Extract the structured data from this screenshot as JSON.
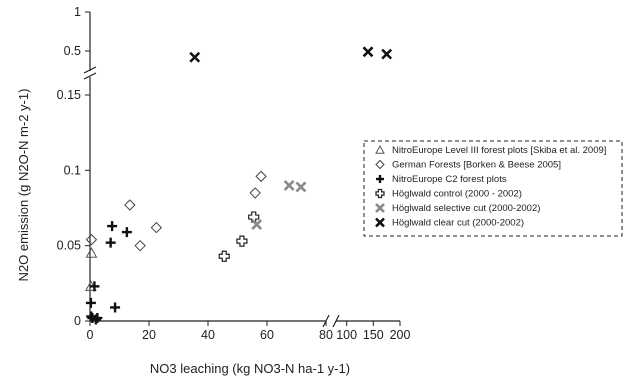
{
  "chart_data": {
    "type": "scatter",
    "xlabel": "NO3 leaching (kg NO3-N ha-1 y-1)",
    "ylabel": "N2O emission (g N2O-N m-2 y-1)",
    "x_axis": {
      "segments": [
        {
          "range": [
            0,
            80
          ],
          "ticks": [
            0,
            20,
            40,
            60,
            80
          ]
        },
        {
          "range": [
            80,
            200
          ],
          "ticks": [
            100,
            150,
            200
          ],
          "break_before": true
        }
      ],
      "tick_labels": [
        "0",
        "20",
        "40",
        "60",
        "80",
        "100",
        "150",
        "200"
      ]
    },
    "y_axis": {
      "segments": [
        {
          "range": [
            0,
            0.17
          ],
          "ticks": [
            0,
            0.05,
            0.1,
            0.15
          ]
        },
        {
          "range": [
            0.3,
            1.0
          ],
          "ticks": [
            0.5,
            1.0
          ],
          "break_before": true
        }
      ],
      "tick_labels": [
        "0",
        "0.05",
        "0.1",
        "0.15",
        "0.5",
        "1"
      ]
    },
    "grid": false,
    "legend_position": "right",
    "series": [
      {
        "name": "NitroEurope Level III forest plots [Skiba et al. 2009]",
        "marker": "triangle",
        "color": "#555555",
        "points": [
          [
            0.5,
            0.045
          ],
          [
            0.3,
            0.023
          ]
        ]
      },
      {
        "name": "German Forests [Borken & Beese 2005]",
        "marker": "diamond",
        "color": "#444444",
        "points": [
          [
            0.5,
            0.054
          ],
          [
            13.5,
            0.077
          ],
          [
            17,
            0.05
          ],
          [
            22.5,
            0.062
          ],
          [
            56,
            0.085
          ],
          [
            58,
            0.096
          ]
        ]
      },
      {
        "name": "NitroEurope C2 forest plots",
        "marker": "plus",
        "color": "#111111",
        "points": [
          [
            0.3,
            0.012
          ],
          [
            0.4,
            0.003
          ],
          [
            0.8,
            0.002
          ],
          [
            1.5,
            0.023
          ],
          [
            2,
            0.001
          ],
          [
            2.5,
            0.002
          ],
          [
            7,
            0.052
          ],
          [
            7.5,
            0.063
          ],
          [
            8.5,
            0.009
          ],
          [
            12.5,
            0.059
          ]
        ]
      },
      {
        "name": "Höglwald control (2000 - 2002)",
        "marker": "open-cross",
        "color": "#222222",
        "points": [
          [
            45.5,
            0.043
          ],
          [
            51.5,
            0.053
          ],
          [
            55.5,
            0.069
          ]
        ]
      },
      {
        "name": "Höglwald selective cut (2000-2002)",
        "marker": "x",
        "color": "#8a8a8a",
        "points": [
          [
            56.5,
            0.064
          ],
          [
            67.5,
            0.09
          ],
          [
            71.5,
            0.089
          ]
        ]
      },
      {
        "name": "Höglwald clear cut (2000-2002)",
        "marker": "x",
        "color": "#111111",
        "points": [
          [
            35.5,
            0.42
          ],
          [
            140,
            0.49
          ],
          [
            175,
            0.46
          ]
        ]
      }
    ]
  }
}
